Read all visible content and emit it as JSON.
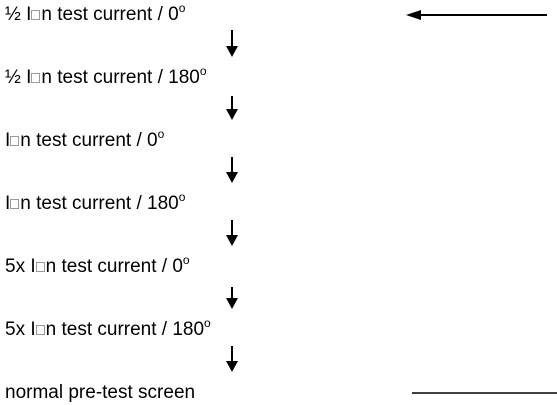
{
  "steps": [
    {
      "prefix": "½ I",
      "suffix": "n test current / 0",
      "degree": "o"
    },
    {
      "prefix": "½ I",
      "suffix": "n test current / 180",
      "degree": "o"
    },
    {
      "prefix": "I",
      "suffix": "n test current / 0",
      "degree": "o"
    },
    {
      "prefix": "I",
      "suffix": "n test current / 180",
      "degree": "o"
    },
    {
      "prefix": "5x I",
      "suffix": "n test current / 0",
      "degree": "o"
    },
    {
      "prefix": "5x I",
      "suffix": "n test current / 180",
      "degree": "o"
    },
    {
      "text": "normal pre-test screen"
    }
  ]
}
